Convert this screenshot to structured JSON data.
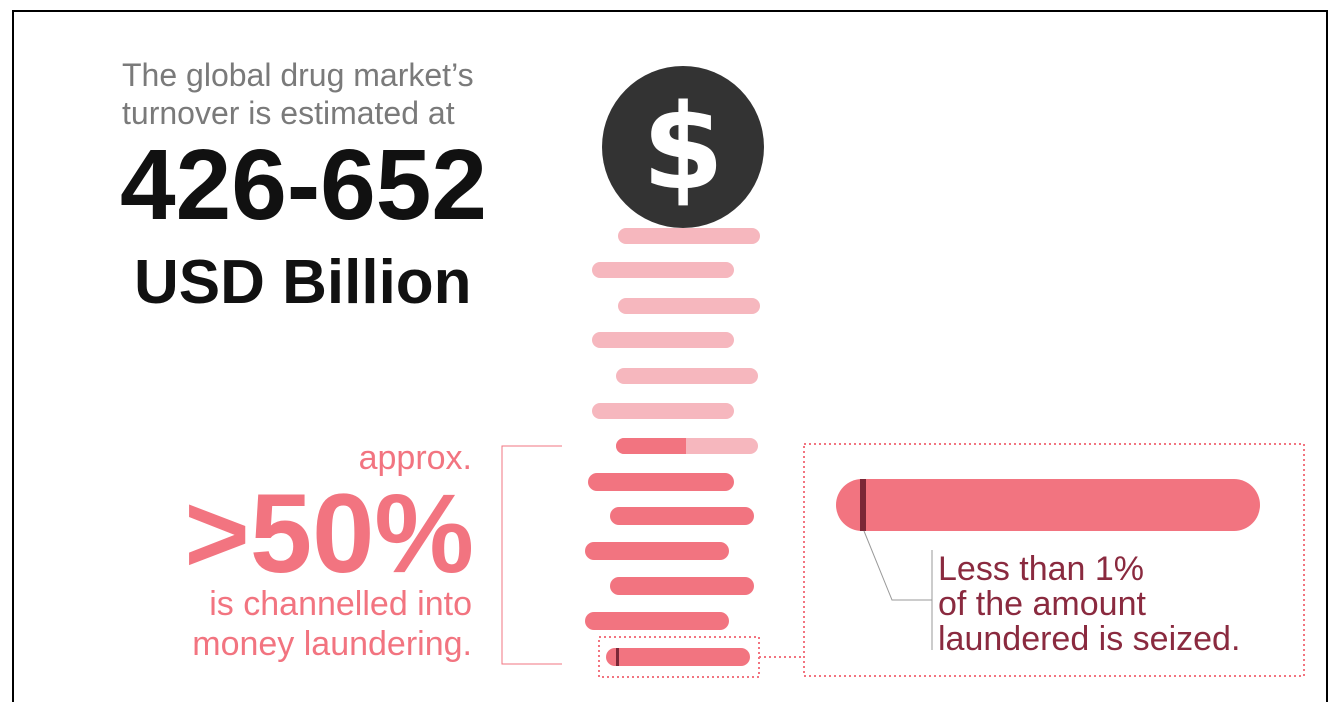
{
  "intro": {
    "line1": "The global drug market’s",
    "line2": "turnover is estimated at"
  },
  "turnover": {
    "range": "426-652",
    "unit": "USD Billion"
  },
  "laundering": {
    "approx": "approx.",
    "percent": ">50%",
    "line1": "is channelled into",
    "line2": "money laundering."
  },
  "seized": {
    "line1": "Less than 1%",
    "line2": "of the amount",
    "line3": "laundered is seized."
  },
  "coin": {
    "symbol": "$",
    "icon": "dollar-coin-icon"
  },
  "colors": {
    "pale_pink": "#f6b7be",
    "coral": "#f27480",
    "dark_marker": "#7b2737",
    "text_gray": "#7a7a7a",
    "text_dark": "#111111",
    "seized_text": "#8a2a3f"
  }
}
